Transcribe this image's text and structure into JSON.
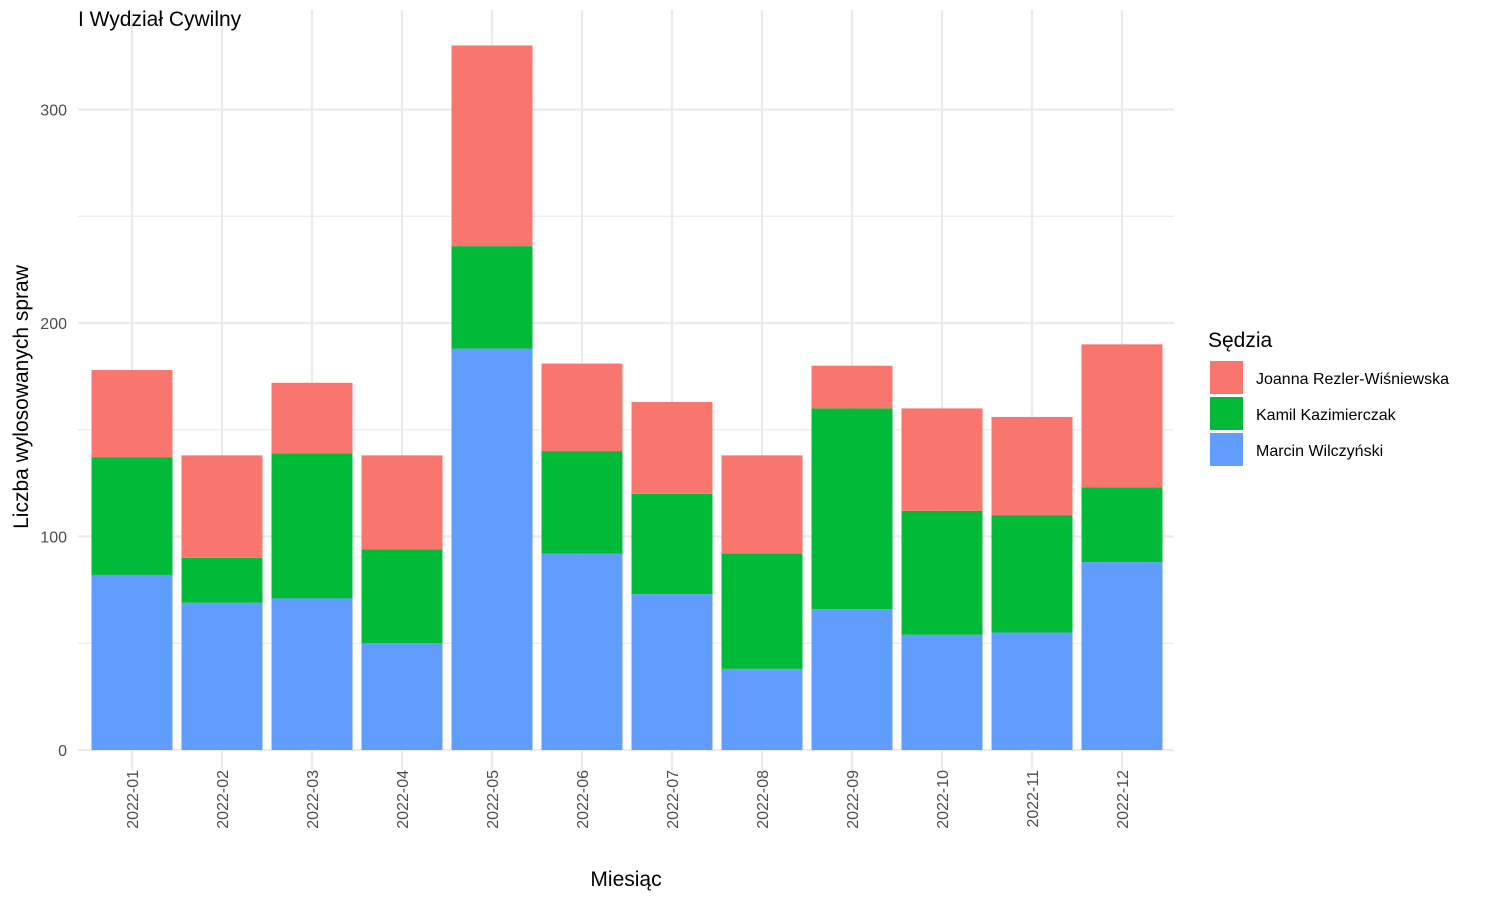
{
  "chart_data": {
    "type": "bar",
    "stacked": true,
    "title": "I Wydział Cywilny",
    "xlabel": "Miesiąc",
    "ylabel": "Liczba wylosowanych spraw",
    "ylim": [
      0,
      330
    ],
    "yticks": [
      0,
      100,
      200,
      300
    ],
    "grid": true,
    "legend_title": "Sędzia",
    "legend_position": "right",
    "categories": [
      "2022-01",
      "2022-02",
      "2022-03",
      "2022-04",
      "2022-05",
      "2022-06",
      "2022-07",
      "2022-08",
      "2022-09",
      "2022-10",
      "2022-11",
      "2022-12"
    ],
    "series": [
      {
        "name": "Marcin Wilczyński",
        "color": "#619CFF",
        "values": [
          82,
          69,
          71,
          50,
          188,
          92,
          73,
          38,
          66,
          54,
          55,
          88
        ]
      },
      {
        "name": "Kamil Kazimierczak",
        "color": "#00BA38",
        "values": [
          55,
          21,
          68,
          44,
          48,
          48,
          47,
          54,
          94,
          58,
          55,
          35
        ]
      },
      {
        "name": "Joanna Rezler-Wiśniewska",
        "color": "#F8766D",
        "values": [
          41,
          48,
          33,
          44,
          94,
          41,
          43,
          46,
          20,
          48,
          46,
          67
        ]
      }
    ],
    "legend_order": [
      "Joanna Rezler-Wiśniewska",
      "Kamil Kazimierczak",
      "Marcin Wilczyński"
    ]
  }
}
